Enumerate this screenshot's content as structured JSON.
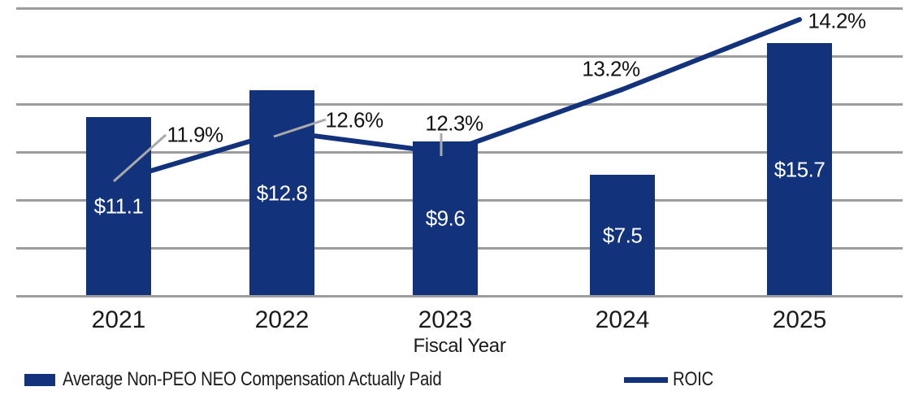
{
  "chart_data": {
    "type": "bar+line",
    "title": "",
    "categories": [
      "2021",
      "2022",
      "2023",
      "2024",
      "2025"
    ],
    "xlabel": "Fiscal Year",
    "grid": true,
    "gridline_count": 7,
    "bar_axis": {
      "ylim": [
        0,
        18
      ],
      "gridline_step": 3,
      "tick_labels_visible": false
    },
    "line_axis": {
      "tick_labels_visible": false
    },
    "legend_position": "bottom",
    "series": [
      {
        "name": "Average Non-PEO NEO Compensation Actually Paid",
        "type": "bar",
        "values": [
          11.1,
          12.8,
          9.6,
          7.5,
          15.7
        ],
        "labels": [
          "$11.1",
          "$12.8",
          "$9.6",
          "$7.5",
          "$15.7"
        ],
        "color": "#12337c",
        "label_color": "#ffffff"
      },
      {
        "name": "ROIC",
        "type": "line",
        "values": [
          11.9,
          12.6,
          12.3,
          13.2,
          14.2
        ],
        "labels": [
          "11.9%",
          "12.6%",
          "12.3%",
          "13.2%",
          "14.2%"
        ],
        "color": "#12337c",
        "label_color": "#141414"
      }
    ]
  },
  "colors": {
    "navy": "#12337c",
    "gridline_gray": "#9d9d9d",
    "leader_gray": "#a9a9a9",
    "axis_text": "#1b1b1b",
    "background": "#ffffff"
  }
}
